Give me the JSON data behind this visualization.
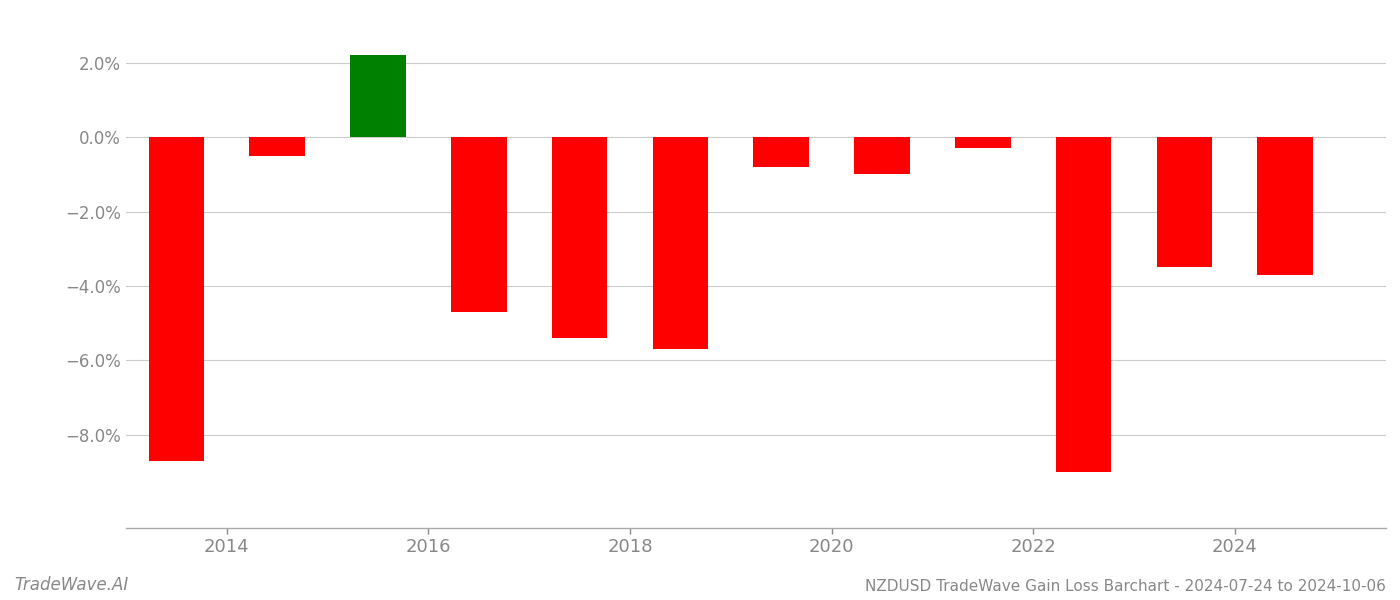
{
  "years": [
    2013.5,
    2014.5,
    2015.5,
    2016.5,
    2017.5,
    2018.5,
    2019.5,
    2020.5,
    2021.5,
    2022.5,
    2023.5,
    2024.5
  ],
  "values": [
    -0.087,
    -0.005,
    0.022,
    -0.047,
    -0.054,
    -0.057,
    -0.008,
    -0.01,
    -0.003,
    -0.09,
    -0.035,
    -0.037
  ],
  "bar_colors": [
    "#ff0000",
    "#ff0000",
    "#008000",
    "#ff0000",
    "#ff0000",
    "#ff0000",
    "#ff0000",
    "#ff0000",
    "#ff0000",
    "#ff0000",
    "#ff0000",
    "#ff0000"
  ],
  "ylim": [
    -0.105,
    0.032
  ],
  "yticks": [
    -0.08,
    -0.06,
    -0.04,
    -0.02,
    0.0,
    0.02
  ],
  "grid_color": "#cccccc",
  "background_color": "#ffffff",
  "bar_width": 0.55,
  "title": "NZDUSD TradeWave Gain Loss Barchart - 2024-07-24 to 2024-10-06",
  "watermark": "TradeWave.AI",
  "x_tick_years": [
    2014,
    2016,
    2018,
    2020,
    2022,
    2024
  ],
  "xlim": [
    2013.0,
    2025.5
  ],
  "spine_color": "#aaaaaa",
  "tick_color": "#888888",
  "label_color": "#888888",
  "tick_fontsize": 13,
  "ytick_fontsize": 12
}
